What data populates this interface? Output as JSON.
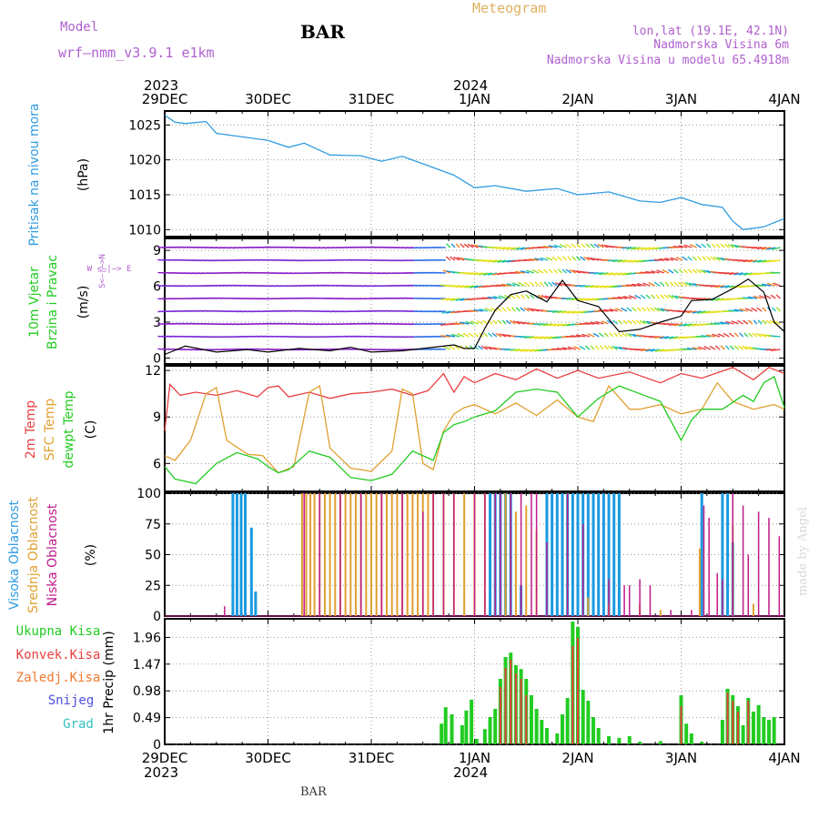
{
  "header": {
    "model_label": "Model",
    "model_name": "wrf–nmm_v3.9.1 e1km",
    "station": "BAR",
    "product": "Meteogram",
    "lonlat": "lon,lat (19.1E, 42.1N)",
    "elevation": "Nadmorska Visina 6m",
    "model_elevation": "Nadmorska Visina u modelu 65.4918m"
  },
  "footer": {
    "station": "BAR",
    "credit": "made by Angel"
  },
  "time_axis": {
    "year_start": "2023",
    "year_end": "2024",
    "ticks": [
      "29DEC",
      "30DEC",
      "31DEC",
      "1JAN",
      "2JAN",
      "3JAN",
      "4JAN"
    ],
    "range_days": [
      0,
      6
    ]
  },
  "colors": {
    "pressure": "#2f9be0",
    "wind_speed_line": "#000000",
    "temp_2m": "#e84040",
    "sfc_temp": "#e0a030",
    "dewpoint": "#22cc22",
    "high_cloud": "#1a9ae0",
    "mid_cloud": "#e0a030",
    "low_cloud": "#c01a8a",
    "precip_total": "#22cc22",
    "precip_conv": "#e84040",
    "snow": "#5050e0",
    "hail": "#30c0c0",
    "frozen": "#f07830"
  },
  "chart_data": [
    {
      "type": "line",
      "panel": "pressure",
      "ylabel": "Pritisak na nivou mora",
      "unit": "(hPa)",
      "yticks": [
        "1010",
        "1015",
        "1020",
        "1025"
      ],
      "ylim": [
        1009,
        1027
      ],
      "x": [
        0,
        0.1,
        0.2,
        0.4,
        0.5,
        0.75,
        1.0,
        1.2,
        1.35,
        1.6,
        1.9,
        2.1,
        2.3,
        2.6,
        2.8,
        3.0,
        3.2,
        3.5,
        3.8,
        4.0,
        4.3,
        4.6,
        4.8,
        5.0,
        5.2,
        5.4,
        5.5,
        5.6,
        5.8,
        6.0
      ],
      "values": [
        1026.4,
        1025.4,
        1025.2,
        1025.5,
        1023.8,
        1023.3,
        1022.8,
        1021.8,
        1022.4,
        1020.7,
        1020.6,
        1019.8,
        1020.5,
        1018.9,
        1017.8,
        1016.0,
        1016.3,
        1015.5,
        1015.9,
        1015.0,
        1015.4,
        1014.1,
        1013.9,
        1014.6,
        1013.6,
        1013.2,
        1011.2,
        1010.0,
        1010.4,
        1011.6
      ]
    },
    {
      "type": "line",
      "panel": "wind",
      "ylabel": "10m Vjetar",
      "ylabel2": "Brzina i Pravac",
      "unit": "(m/s)",
      "compass_label": "W <–|–> E",
      "compass_vertical": "S<–|–>N",
      "yticks": [
        "0",
        "3",
        "6",
        "9"
      ],
      "ylim": [
        -0.5,
        10
      ],
      "x": [
        0,
        0.2,
        0.5,
        0.8,
        1.0,
        1.3,
        1.6,
        1.8,
        2.0,
        2.3,
        2.6,
        2.8,
        2.9,
        3.0,
        3.1,
        3.2,
        3.35,
        3.5,
        3.7,
        3.85,
        4.0,
        4.2,
        4.4,
        4.6,
        4.8,
        5.0,
        5.1,
        5.3,
        5.5,
        5.65,
        5.8,
        5.9,
        6.0
      ],
      "values": [
        0.3,
        1.0,
        0.5,
        0.7,
        0.5,
        0.8,
        0.6,
        0.9,
        0.5,
        0.6,
        0.9,
        1.1,
        0.8,
        0.8,
        2.5,
        4.0,
        5.3,
        5.6,
        4.7,
        6.5,
        4.8,
        4.3,
        2.2,
        2.4,
        3.0,
        3.5,
        4.8,
        4.9,
        5.8,
        6.6,
        5.5,
        3.0,
        2.2
      ]
    },
    {
      "type": "line",
      "panel": "temperature",
      "ylabel": "2m Temp",
      "ylabel2": "SFC Temp",
      "ylabel3": "dewpt Temp",
      "unit": "(C)",
      "yticks": [
        "6",
        "9",
        "12"
      ],
      "ylim": [
        4.2,
        12.3
      ],
      "series": [
        {
          "name": "2m Temp",
          "x": [
            0,
            0.05,
            0.15,
            0.3,
            0.5,
            0.7,
            0.9,
            1.0,
            1.1,
            1.2,
            1.4,
            1.6,
            1.8,
            2.0,
            2.2,
            2.4,
            2.55,
            2.7,
            2.8,
            2.9,
            3.0,
            3.2,
            3.4,
            3.6,
            3.8,
            4.0,
            4.2,
            4.5,
            4.8,
            5.0,
            5.2,
            5.5,
            5.7,
            5.85,
            6.0
          ],
          "values": [
            8.1,
            11.1,
            10.4,
            10.6,
            10.4,
            10.7,
            10.3,
            10.9,
            11.0,
            10.3,
            10.6,
            10.2,
            10.5,
            10.6,
            10.8,
            10.4,
            10.7,
            11.8,
            10.6,
            11.6,
            11.2,
            11.8,
            11.4,
            12.1,
            11.5,
            12.0,
            11.5,
            11.9,
            11.2,
            11.8,
            11.5,
            12.2,
            11.4,
            12.2,
            11.8
          ]
        },
        {
          "name": "SFC Temp",
          "x": [
            0,
            0.1,
            0.25,
            0.4,
            0.5,
            0.6,
            0.8,
            0.95,
            1.1,
            1.25,
            1.4,
            1.5,
            1.6,
            1.8,
            2.0,
            2.2,
            2.3,
            2.4,
            2.5,
            2.6,
            2.7,
            2.8,
            2.9,
            3.0,
            3.2,
            3.4,
            3.6,
            3.8,
            4.0,
            4.15,
            4.3,
            4.5,
            4.6,
            4.8,
            5.0,
            5.2,
            5.35,
            5.5,
            5.7,
            5.9,
            6.0
          ],
          "values": [
            6.5,
            6.2,
            7.5,
            10.5,
            10.9,
            7.5,
            6.6,
            6.5,
            5.4,
            5.8,
            10.6,
            11.0,
            7.0,
            5.7,
            5.5,
            6.8,
            10.8,
            10.5,
            6.0,
            5.6,
            8.1,
            9.2,
            9.6,
            9.8,
            9.2,
            9.9,
            9.1,
            10.1,
            9.0,
            8.7,
            11.0,
            9.5,
            9.5,
            9.8,
            9.2,
            9.5,
            11.2,
            10.0,
            9.5,
            9.8,
            9.5
          ]
        },
        {
          "name": "dewpt Temp",
          "x": [
            0,
            0.1,
            0.3,
            0.5,
            0.7,
            0.9,
            1.0,
            1.1,
            1.2,
            1.4,
            1.6,
            1.8,
            2.0,
            2.2,
            2.4,
            2.6,
            2.7,
            2.8,
            2.9,
            3.0,
            3.2,
            3.4,
            3.6,
            3.8,
            4.0,
            4.2,
            4.4,
            4.6,
            4.8,
            5.0,
            5.1,
            5.2,
            5.4,
            5.6,
            5.7,
            5.8,
            5.9,
            6.0
          ],
          "values": [
            5.8,
            5.0,
            4.7,
            6.0,
            6.7,
            6.3,
            5.8,
            5.4,
            5.6,
            6.8,
            6.4,
            5.1,
            4.9,
            5.3,
            6.8,
            6.2,
            8.0,
            8.5,
            8.7,
            9.0,
            9.4,
            10.6,
            10.8,
            10.6,
            9.0,
            10.2,
            11.0,
            10.5,
            10.0,
            7.5,
            8.8,
            9.5,
            9.5,
            10.4,
            10.0,
            11.2,
            11.6,
            9.6
          ]
        }
      ]
    },
    {
      "type": "bar",
      "panel": "cloud",
      "ylabel": "Visoka Oblacnost",
      "ylabel2": "Srednja Oblacnost",
      "ylabel3": "Niska Oblacnost",
      "unit": "(%)",
      "yticks": [
        "0",
        "25",
        "50",
        "75",
        "100"
      ],
      "ylim": [
        0,
        100
      ],
      "series": [
        {
          "name": "Visoka Oblacnost",
          "x": [
            0.66,
            0.7,
            0.74,
            0.78,
            0.84,
            0.88,
            3.15,
            3.2,
            3.25,
            3.3,
            3.35,
            3.45,
            3.7,
            3.75,
            3.8,
            3.85,
            3.9,
            3.95,
            4.0,
            4.05,
            4.1,
            4.15,
            4.2,
            4.25,
            4.3,
            4.35,
            4.4,
            5.9,
            6.15,
            5.2,
            5.4,
            5.45,
            5.5
          ],
          "values": [
            100,
            100,
            100,
            100,
            72,
            20,
            100,
            100,
            100,
            100,
            100,
            25,
            100,
            100,
            100,
            100,
            100,
            100,
            100,
            100,
            100,
            100,
            100,
            100,
            100,
            100,
            100,
            0,
            0,
            100,
            100,
            100,
            60
          ]
        },
        {
          "name": "Srednja Oblacnost",
          "x": [
            1.33,
            1.37,
            1.41,
            1.45,
            1.5,
            1.55,
            1.6,
            1.65,
            1.7,
            1.75,
            1.8,
            1.85,
            1.9,
            1.95,
            2.0,
            2.05,
            2.1,
            2.15,
            2.2,
            2.25,
            2.3,
            2.35,
            2.4,
            2.45,
            2.5,
            2.55,
            2.6,
            2.7,
            2.8,
            2.9,
            3.0,
            3.1,
            3.3,
            3.4,
            3.5,
            3.6,
            4.1,
            4.3,
            4.6,
            4.8,
            5.18,
            5.5,
            5.7
          ],
          "values": [
            100,
            100,
            100,
            100,
            100,
            100,
            100,
            100,
            100,
            100,
            100,
            100,
            100,
            100,
            100,
            100,
            100,
            100,
            100,
            100,
            100,
            100,
            100,
            100,
            100,
            100,
            100,
            100,
            100,
            100,
            100,
            100,
            100,
            85,
            90,
            70,
            15,
            10,
            10,
            5,
            55,
            75,
            10
          ]
        },
        {
          "name": "Niska Oblacnost",
          "x": [
            0.58,
            1.35,
            1.5,
            1.7,
            1.9,
            2.1,
            2.3,
            2.5,
            2.6,
            2.7,
            2.8,
            3.0,
            3.1,
            3.2,
            3.25,
            3.35,
            3.45,
            3.55,
            3.6,
            3.7,
            3.9,
            4.05,
            4.3,
            4.45,
            4.5,
            4.6,
            4.7,
            4.9,
            5.1,
            5.22,
            5.27,
            5.35,
            5.4,
            5.5,
            5.6,
            5.65,
            5.75,
            5.85,
            5.95
          ],
          "values": [
            8,
            100,
            100,
            100,
            100,
            100,
            100,
            85,
            100,
            100,
            100,
            100,
            100,
            100,
            100,
            100,
            100,
            100,
            100,
            60,
            100,
            75,
            30,
            25,
            25,
            30,
            25,
            5,
            5,
            90,
            80,
            35,
            30,
            100,
            90,
            50,
            85,
            80,
            65
          ]
        }
      ]
    },
    {
      "type": "bar",
      "panel": "precip",
      "ylabel": "1hr Precip",
      "unit": "(mm)",
      "legend": [
        "Ukupna Kisa",
        "Konvek.Kisa",
        "Zaledj.Kisa",
        "Snijeg",
        "Grad"
      ],
      "yticks": [
        "0",
        "0.49",
        "0.98",
        "1.47",
        "1.96"
      ],
      "ylim": [
        0,
        2.3
      ],
      "series": [
        {
          "name": "Ukupna Kisa",
          "x": [
            2.68,
            2.72,
            2.78,
            2.88,
            2.92,
            2.97,
            3.02,
            3.1,
            3.15,
            3.2,
            3.25,
            3.3,
            3.35,
            3.4,
            3.45,
            3.5,
            3.55,
            3.6,
            3.65,
            3.7,
            3.8,
            3.85,
            3.9,
            3.95,
            4.0,
            4.05,
            4.1,
            4.15,
            4.2,
            4.3,
            4.4,
            4.5,
            4.6,
            4.8,
            5.0,
            5.05,
            5.1,
            5.2,
            5.4,
            5.45,
            5.5,
            5.55,
            5.6,
            5.65,
            5.7,
            5.75,
            5.8,
            5.85,
            5.9
          ],
          "values": [
            0.38,
            0.68,
            0.55,
            0.35,
            0.62,
            0.82,
            0.1,
            0.28,
            0.5,
            0.65,
            1.2,
            1.6,
            1.68,
            1.45,
            1.38,
            1.2,
            0.9,
            0.65,
            0.45,
            0.3,
            0.2,
            0.55,
            0.85,
            2.25,
            2.15,
            1.0,
            0.8,
            0.5,
            0.3,
            0.15,
            0.12,
            0.15,
            0.05,
            0.06,
            0.9,
            0.38,
            0.2,
            0.05,
            0.45,
            1.02,
            0.9,
            0.7,
            0.35,
            0.85,
            0.6,
            0.72,
            0.5,
            0.45,
            0.5
          ]
        },
        {
          "name": "Konvek.Kisa",
          "x": [
            3.25,
            3.3,
            3.35,
            3.4,
            3.45,
            3.5,
            3.95,
            4.0,
            5.0,
            5.45,
            5.5,
            5.55,
            5.65
          ],
          "values": [
            1.05,
            1.4,
            1.55,
            1.3,
            1.2,
            0.9,
            1.8,
            1.95,
            0.7,
            0.95,
            0.8,
            0.6,
            0.8
          ]
        }
      ]
    }
  ]
}
